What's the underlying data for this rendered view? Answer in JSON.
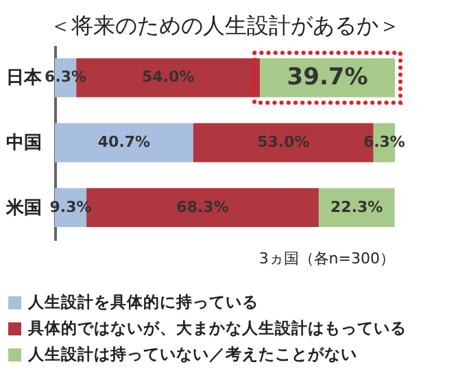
{
  "chart_data": {
    "type": "bar",
    "orientation": "horizontal",
    "stacked": true,
    "title": "＜将来のための人生設計があるか＞",
    "categories": [
      "日本",
      "中国",
      "米国"
    ],
    "series": [
      {
        "name": "人生設計を具体的に持っている",
        "color": "#a9bfe0",
        "values": [
          6.3,
          40.7,
          9.3
        ],
        "value_labels": [
          "6.3%",
          "40.7%",
          "9.3%"
        ]
      },
      {
        "name": "具体的ではないが、大まかな人生設計はもっている",
        "color": "#b0363f",
        "values": [
          54.0,
          53.0,
          68.3
        ],
        "value_labels": [
          "54.0%",
          "53.0%",
          "68.3%"
        ]
      },
      {
        "name": "人生設計は持っていない／考えたことがない",
        "color": "#a7c98a",
        "values": [
          39.7,
          6.3,
          22.3
        ],
        "value_labels": [
          "39.7%",
          "6.3%",
          "22.3%"
        ]
      }
    ],
    "annotations": [
      "3ヵ国（各n=300）"
    ],
    "legend": "bottom",
    "grid": false
  }
}
